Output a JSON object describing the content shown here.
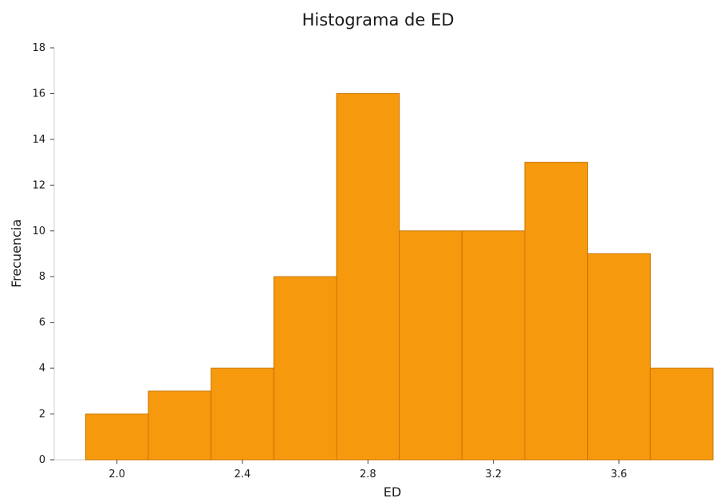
{
  "chart_data": {
    "type": "bar",
    "title": "Histograma de ED",
    "xlabel": "ED",
    "ylabel": "Frecuencia",
    "bin_edges": [
      1.9,
      2.1,
      2.3,
      2.5,
      2.7,
      2.9,
      3.1,
      3.3,
      3.5,
      3.7,
      3.9
    ],
    "values": [
      2,
      3,
      4,
      8,
      16,
      10,
      10,
      13,
      9,
      4
    ],
    "xlim": [
      1.8,
      3.9
    ],
    "ylim": [
      0,
      18
    ],
    "xticks": [
      "2.0",
      "2.4",
      "2.8",
      "3.2",
      "3.6"
    ],
    "yticks": [
      "0",
      "2",
      "4",
      "6",
      "8",
      "10",
      "12",
      "14",
      "16",
      "18"
    ],
    "bar_color": "#f7990d",
    "grid": false
  }
}
